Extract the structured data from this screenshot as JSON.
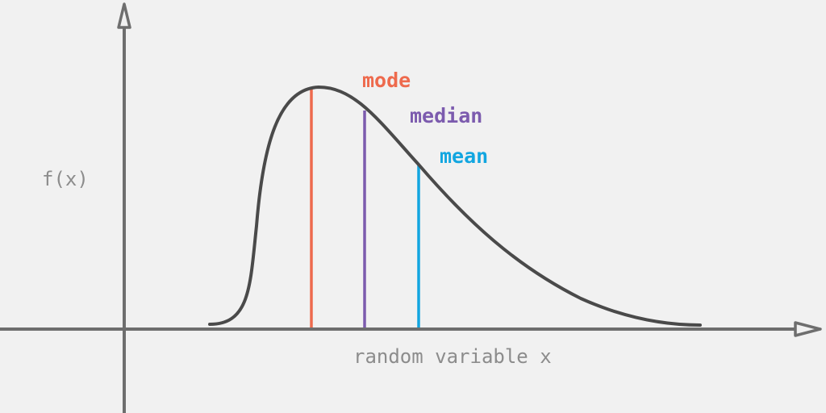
{
  "axes": {
    "y_label": "f(x)",
    "x_label": "random variable x"
  },
  "markers": [
    {
      "key": "mode",
      "label": "mode",
      "color": "#ee6a4d"
    },
    {
      "key": "median",
      "label": "median",
      "color": "#7c5bae"
    },
    {
      "key": "mean",
      "label": "mean",
      "color": "#12a6e0"
    }
  ],
  "colors": {
    "background": "#f1f1f1",
    "axis": "#6e6e6e",
    "curve": "#4a4a4a",
    "axis_text": "#8c8c8c"
  }
}
